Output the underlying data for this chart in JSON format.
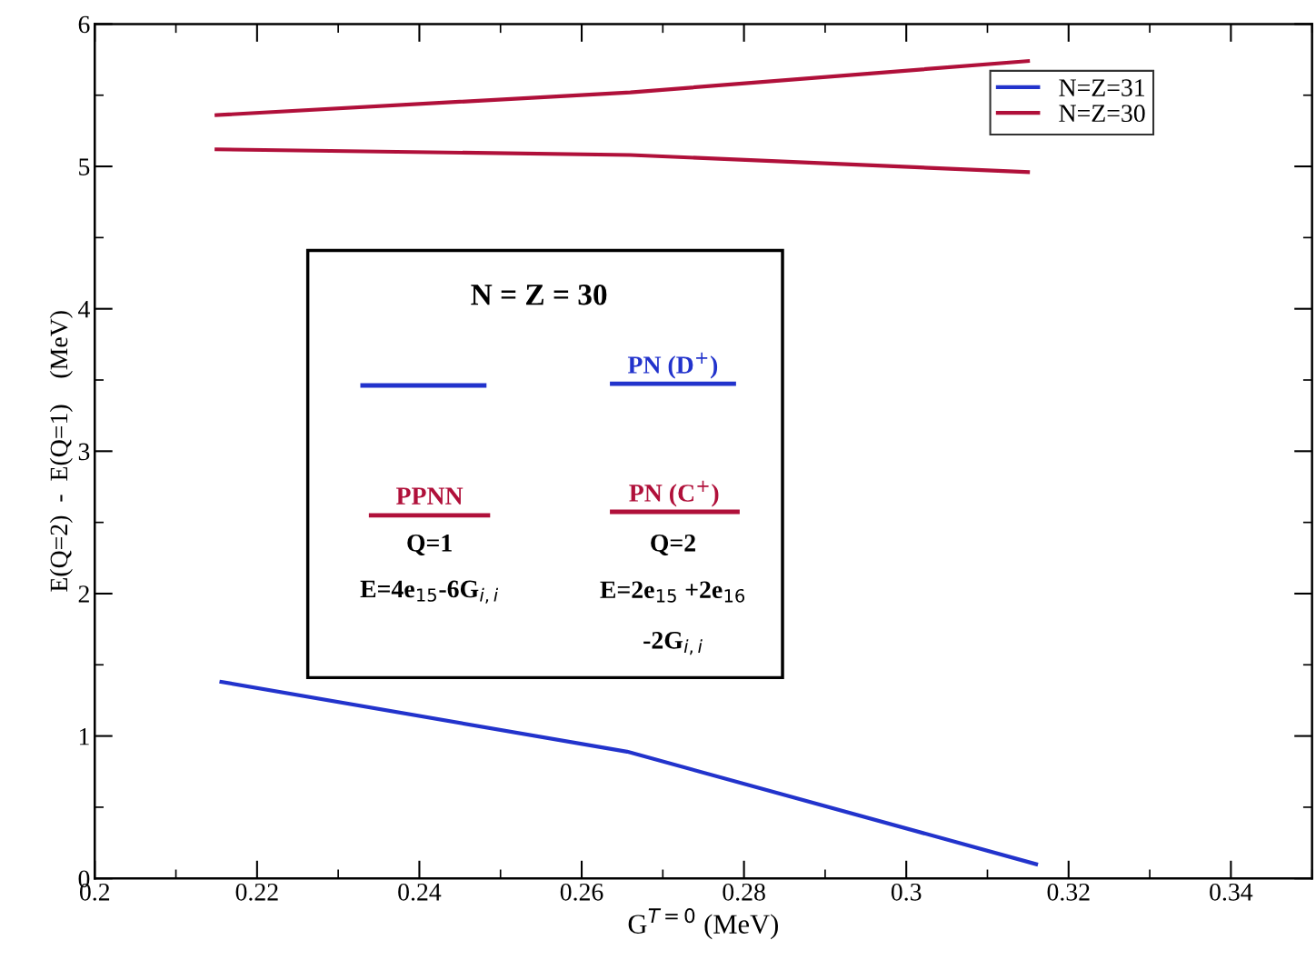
{
  "chart_data": {
    "type": "line",
    "xlabel": "G$^{T=0}$ (MeV)",
    "ylabel": "E(Q=2)  -  E(Q=1)    (MeV)",
    "xlim": [
      0.2,
      0.35
    ],
    "ylim": [
      0,
      6
    ],
    "xticks": [
      {
        "value": 0.2,
        "label": "0.2"
      },
      0.22,
      0.24,
      0.26,
      0.28,
      {
        "value": 0.3,
        "label": "0.3"
      },
      0.32,
      0.34
    ],
    "yticks": [
      0,
      1,
      2,
      3,
      4,
      5,
      6
    ],
    "series": [
      {
        "name": "N=Z=31",
        "color": "#2233cc",
        "x": [
          0.2156,
          0.2656,
          0.316
        ],
        "values": [
          1.38,
          0.89,
          0.1
        ]
      },
      {
        "name": "N=Z=30",
        "color": "#b0103a",
        "x": [
          0.215,
          0.266,
          0.315
        ],
        "values": [
          5.36,
          5.52,
          5.74
        ]
      },
      {
        "color": "#b0103a",
        "x": [
          0.215,
          0.266,
          0.315
        ],
        "values": [
          5.12,
          5.08,
          4.96
        ]
      }
    ],
    "annotations": [
      "N = Z = 30",
      "PN (D$^{+}$)",
      "PPNN",
      "PN (C$^{+}$)",
      "Q=1",
      "E=4e$_{15}$-6G$_{i,i}$",
      "Q=2",
      "E=2e$_{15}$ +2e$_{16}$",
      "-2G$_{i,i}$"
    ],
    "legend": "top right",
    "grid": false,
    "line_style": "solid",
    "marker": "none"
  }
}
